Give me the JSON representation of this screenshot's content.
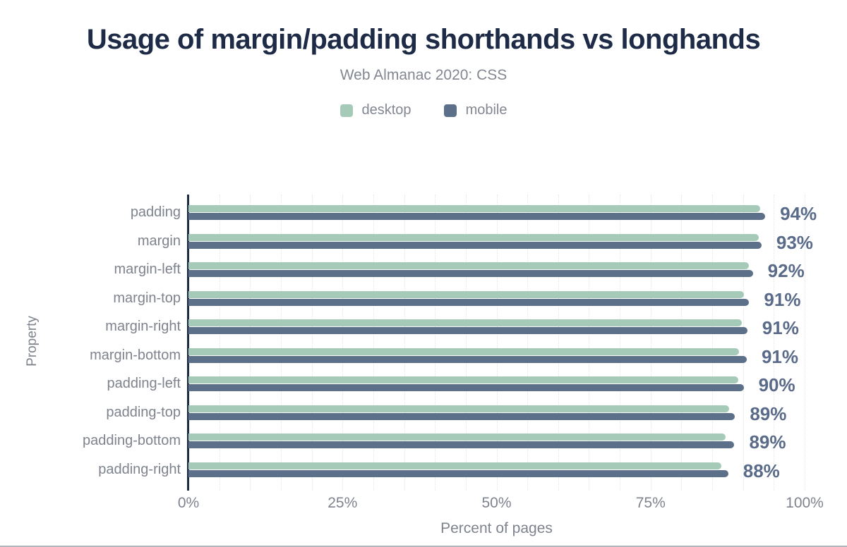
{
  "header": {
    "title": "Usage of margin/padding shorthands vs longhands",
    "subtitle": "Web Almanac 2020: CSS"
  },
  "legend": {
    "items": [
      {
        "label": "desktop",
        "color": "#a5cab8"
      },
      {
        "label": "mobile",
        "color": "#5d7089"
      }
    ]
  },
  "chart_data": {
    "type": "bar",
    "orientation": "horizontal",
    "title": "Usage of margin/padding shorthands vs longhands",
    "subtitle": "Web Almanac 2020: CSS",
    "categories": [
      "padding",
      "margin",
      "margin-left",
      "margin-top",
      "margin-right",
      "margin-bottom",
      "padding-left",
      "padding-top",
      "padding-bottom",
      "padding-right"
    ],
    "series": [
      {
        "name": "desktop",
        "color": "#a5cab8",
        "values": [
          92.8,
          92.5,
          90.9,
          90.1,
          89.8,
          89.4,
          89.2,
          87.8,
          87.2,
          86.5
        ]
      },
      {
        "name": "mobile",
        "color": "#5d7089",
        "values": [
          93.6,
          93.0,
          91.6,
          91.0,
          90.7,
          90.6,
          90.1,
          88.7,
          88.6,
          87.6
        ]
      }
    ],
    "value_labels": [
      "94%",
      "93%",
      "92%",
      "91%",
      "91%",
      "91%",
      "90%",
      "89%",
      "89%",
      "88%"
    ],
    "xlabel": "Percent of pages",
    "ylabel": "Property",
    "x_ticks": [
      "0%",
      "25%",
      "50%",
      "75%",
      "100%"
    ],
    "xlim": [
      0,
      100
    ],
    "grid": true,
    "grid_step_percent": 5,
    "legend_position": "top",
    "colors": {
      "title": "#1e2b47",
      "axis_line": "#1e2b47",
      "axis_text": "#7e838e",
      "value_label": "#5a6b89",
      "gridline": "#e2e6ea",
      "background": "#ffffff"
    }
  }
}
